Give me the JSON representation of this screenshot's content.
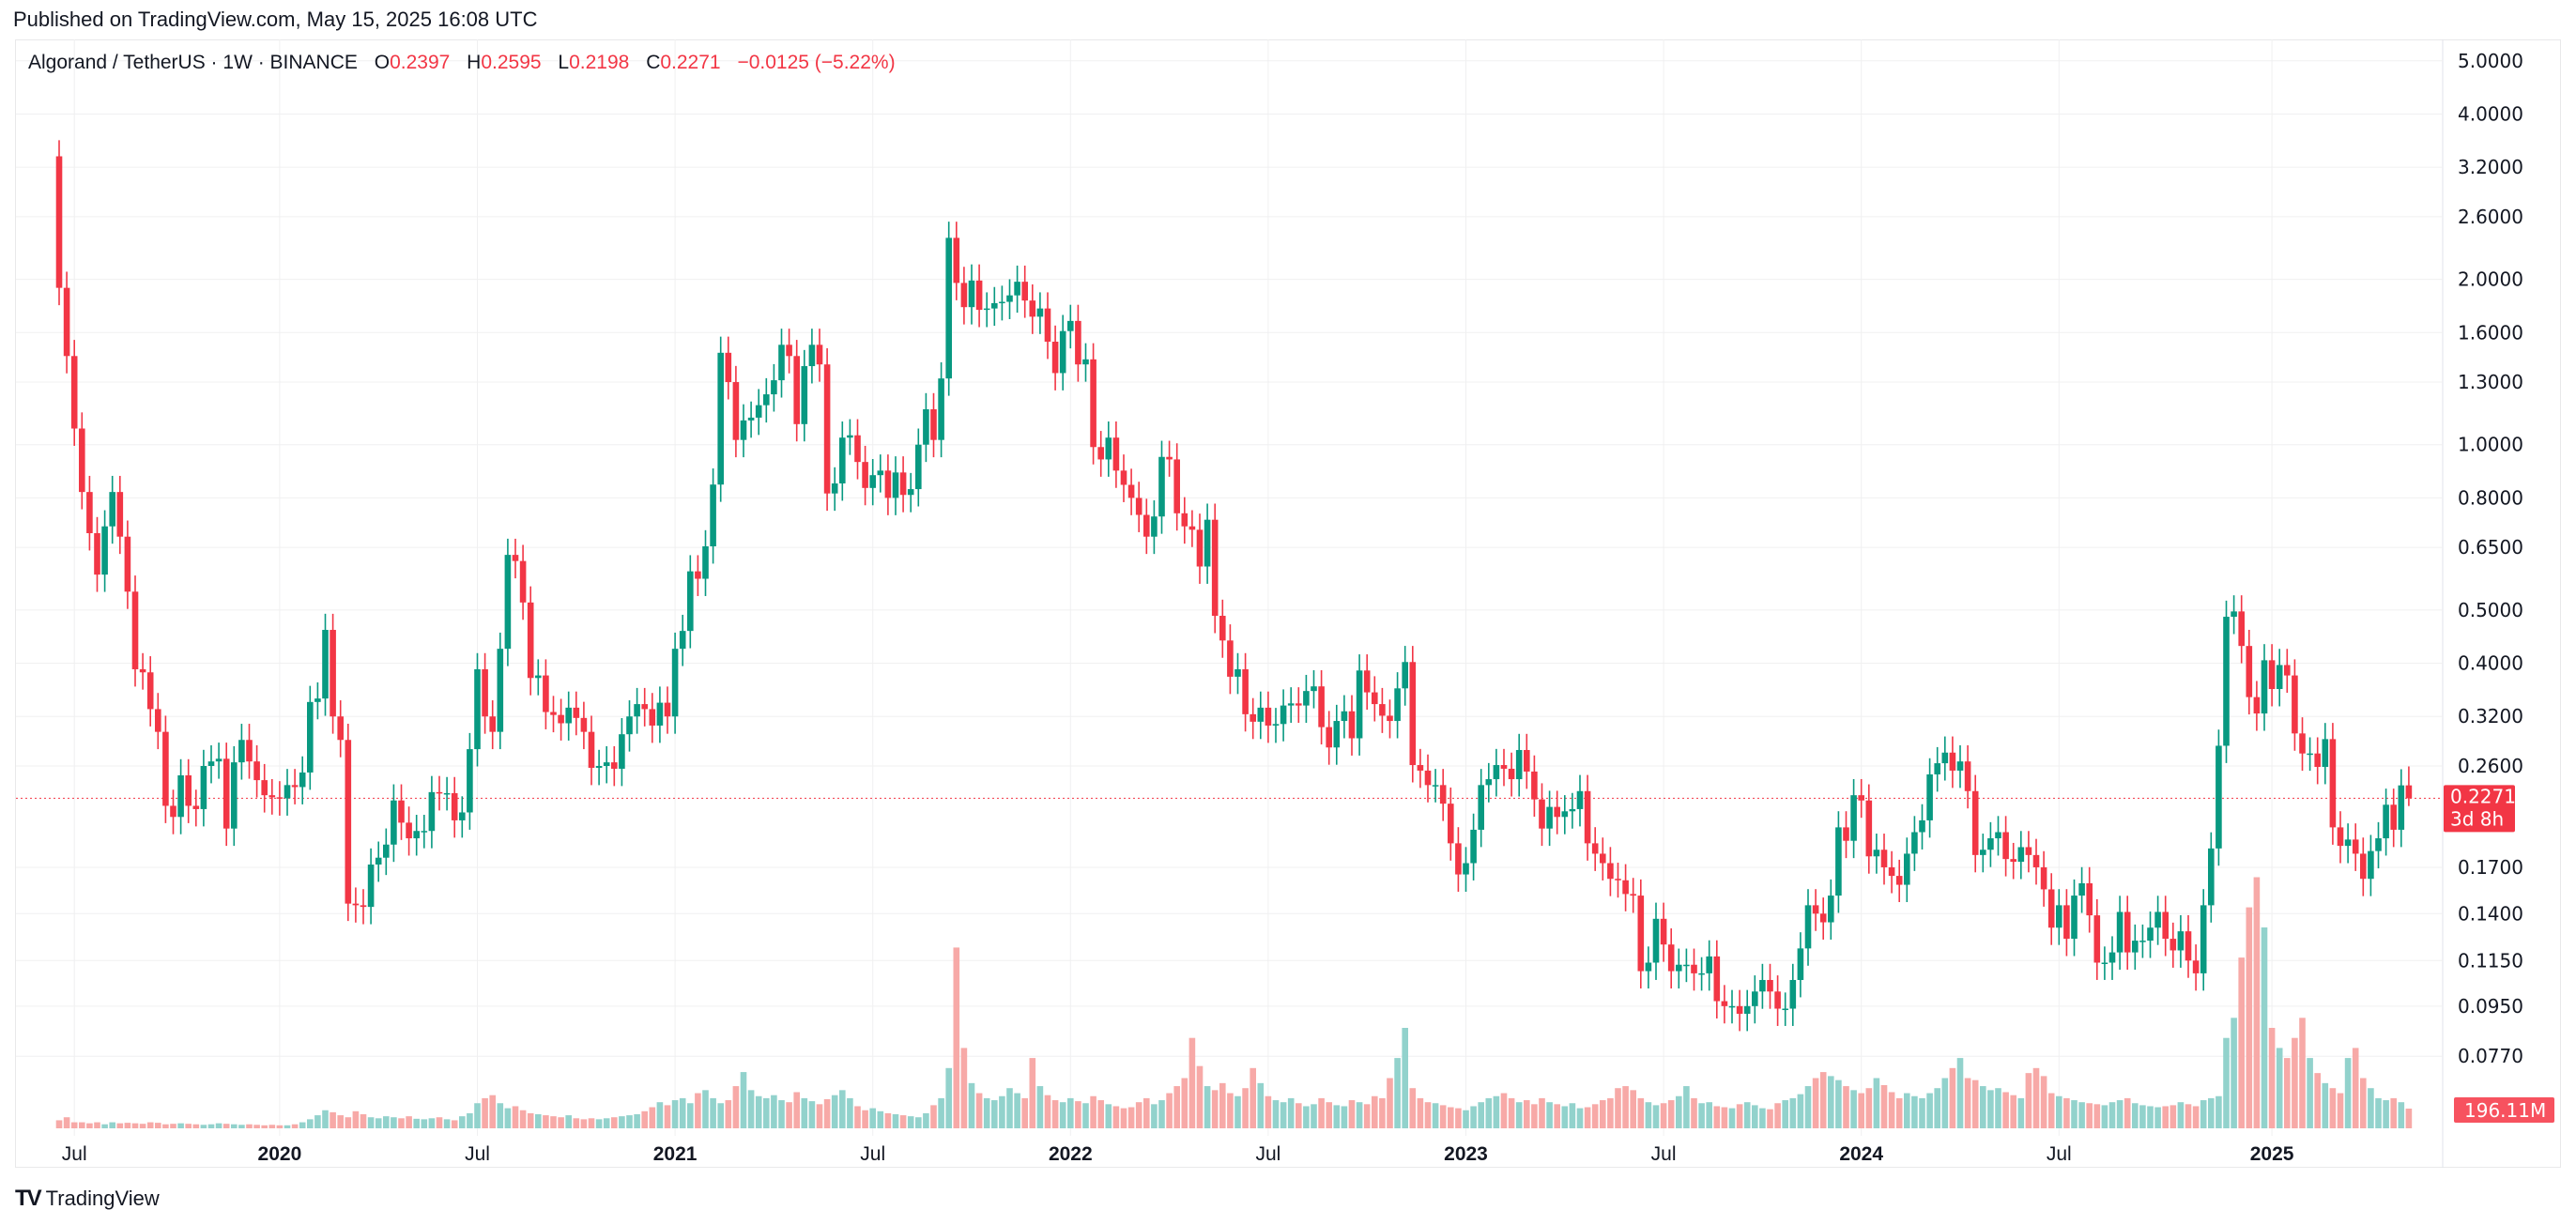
{
  "published": "Published on TradingView.com, May 15, 2025 16:08 UTC",
  "legend": {
    "symbol": "Algorand / TetherUS · 1W · BINANCE",
    "o_label": "O",
    "o": "0.2397",
    "h_label": "H",
    "h": "0.2595",
    "l_label": "L",
    "l": "0.2198",
    "c_label": "C",
    "c": "0.2271",
    "change": "−0.0125 (−5.22%)"
  },
  "brand": {
    "logo": "TV",
    "name": "TradingView"
  },
  "colors": {
    "up": "#089981",
    "down": "#F23645",
    "vol_up": "#92d2cc",
    "vol_down": "#f7a9a7",
    "grid": "#f0f0f1"
  },
  "chart_data": {
    "type": "candlestick",
    "title": "Algorand / TetherUS · 1W · BINANCE",
    "scale": "log",
    "first_open": 3.35,
    "closes": [
      1.93,
      1.45,
      1.07,
      0.82,
      0.69,
      0.58,
      0.71,
      0.82,
      0.68,
      0.54,
      0.39,
      0.385,
      0.33,
      0.3,
      0.22,
      0.21,
      0.25,
      0.22,
      0.217,
      0.26,
      0.265,
      0.268,
      0.2,
      0.264,
      0.29,
      0.265,
      0.245,
      0.23,
      0.228,
      0.227,
      0.24,
      0.238,
      0.253,
      0.34,
      0.345,
      0.46,
      0.32,
      0.29,
      0.146,
      0.145,
      0.144,
      0.172,
      0.177,
      0.187,
      0.225,
      0.205,
      0.192,
      0.198,
      0.198,
      0.233,
      0.232,
      0.232,
      0.207,
      0.214,
      0.279,
      0.39,
      0.32,
      0.3,
      0.425,
      0.63,
      0.614,
      0.516,
      0.376,
      0.38,
      0.326,
      0.322,
      0.311,
      0.332,
      0.318,
      0.3,
      0.258,
      0.26,
      0.264,
      0.257,
      0.297,
      0.32,
      0.337,
      0.33,
      0.308,
      0.339,
      0.32,
      0.425,
      0.458,
      0.588,
      0.57,
      0.653,
      0.846,
      1.47,
      1.3,
      1.02,
      1.107,
      1.12,
      1.18,
      1.235,
      1.31,
      1.52,
      1.45,
      1.09,
      1.39,
      1.52,
      1.4,
      0.815,
      0.85,
      1.03,
      1.04,
      0.93,
      0.834,
      0.88,
      0.897,
      0.8,
      0.89,
      0.81,
      0.83,
      1.0,
      1.16,
      1.02,
      1.32,
      2.38,
      1.97,
      1.78,
      1.99,
      1.76,
      1.77,
      1.81,
      1.82,
      1.87,
      1.98,
      1.83,
      1.71,
      1.77,
      1.54,
      1.35,
      1.61,
      1.68,
      1.4,
      1.43,
      0.99,
      0.94,
      1.03,
      0.897,
      0.845,
      0.8,
      0.745,
      0.68,
      0.74,
      0.95,
      0.94,
      0.75,
      0.71,
      0.7,
      0.6,
      0.73,
      0.488,
      0.44,
      0.378,
      0.39,
      0.323,
      0.313,
      0.332,
      0.308,
      0.31,
      0.335,
      0.338,
      0.335,
      0.356,
      0.363,
      0.306,
      0.281,
      0.314,
      0.327,
      0.292,
      0.388,
      0.354,
      0.337,
      0.321,
      0.314,
      0.36,
      0.402,
      0.261,
      0.255,
      0.24,
      0.24,
      0.222,
      0.188,
      0.165,
      0.173,
      0.199,
      0.24,
      0.246,
      0.261,
      0.257,
      0.246,
      0.278,
      0.254,
      0.226,
      0.2,
      0.219,
      0.21,
      0.215,
      0.217,
      0.234,
      0.188,
      0.18,
      0.173,
      0.162,
      0.161,
      0.152,
      0.151,
      0.11,
      0.114,
      0.137,
      0.123,
      0.11,
      0.113,
      0.113,
      0.109,
      0.109,
      0.117,
      0.097,
      0.095,
      0.095,
      0.092,
      0.095,
      0.101,
      0.106,
      0.101,
      0.094,
      0.094,
      0.106,
      0.121,
      0.145,
      0.14,
      0.135,
      0.151,
      0.201,
      0.19,
      0.23,
      0.225,
      0.178,
      0.183,
      0.17,
      0.164,
      0.158,
      0.18,
      0.197,
      0.207,
      0.251,
      0.263,
      0.275,
      0.255,
      0.265,
      0.234,
      0.179,
      0.183,
      0.192,
      0.197,
      0.176,
      0.174,
      0.185,
      0.179,
      0.17,
      0.155,
      0.132,
      0.145,
      0.126,
      0.151,
      0.159,
      0.139,
      0.114,
      0.114,
      0.119,
      0.141,
      0.119,
      0.125,
      0.125,
      0.132,
      0.141,
      0.126,
      0.12,
      0.13,
      0.115,
      0.109,
      0.145,
      0.184,
      0.283,
      0.486,
      0.497,
      0.43,
      0.347,
      0.324,
      0.405,
      0.359,
      0.397,
      0.38,
      0.298,
      0.274,
      0.274,
      0.259,
      0.291,
      0.201,
      0.186,
      0.191,
      0.18,
      0.162,
      0.182,
      0.192,
      0.221,
      0.199,
      0.2397,
      0.2271
    ],
    "last_candle": {
      "open": 0.2397,
      "high": 0.2595,
      "low": 0.2198,
      "close": 0.2271
    },
    "volume_millions": [
      80,
      110,
      60,
      60,
      50,
      60,
      40,
      60,
      50,
      55,
      50,
      45,
      60,
      55,
      40,
      45,
      50,
      45,
      40,
      35,
      40,
      50,
      45,
      40,
      35,
      40,
      35,
      30,
      35,
      30,
      30,
      40,
      60,
      90,
      130,
      180,
      160,
      130,
      110,
      170,
      140,
      110,
      100,
      120,
      110,
      100,
      120,
      95,
      90,
      100,
      110,
      90,
      80,
      120,
      150,
      250,
      300,
      330,
      250,
      200,
      220,
      180,
      150,
      140,
      130,
      120,
      110,
      130,
      100,
      90,
      100,
      90,
      100,
      110,
      120,
      130,
      140,
      170,
      210,
      260,
      230,
      280,
      300,
      250,
      350,
      380,
      300,
      250,
      280,
      420,
      560,
      380,
      320,
      300,
      330,
      280,
      260,
      360,
      300,
      270,
      240,
      290,
      330,
      380,
      300,
      220,
      180,
      200,
      170,
      150,
      140,
      130,
      120,
      110,
      150,
      230,
      300,
      600,
      1800,
      800,
      450,
      350,
      300,
      280,
      320,
      400,
      350,
      300,
      700,
      420,
      330,
      280,
      260,
      300,
      270,
      250,
      320,
      280,
      240,
      220,
      200,
      210,
      260,
      300,
      240,
      280,
      350,
      420,
      500,
      900,
      620,
      420,
      380,
      450,
      350,
      320,
      400,
      600,
      450,
      320,
      280,
      260,
      300,
      250,
      220,
      240,
      300,
      260,
      230,
      220,
      280,
      260,
      240,
      320,
      300,
      500,
      700,
      1000,
      400,
      300,
      260,
      250,
      230,
      210,
      200,
      180,
      220,
      260,
      300,
      320,
      350,
      300,
      260,
      280,
      240,
      300,
      260,
      240,
      220,
      250,
      200,
      210,
      240,
      280,
      300,
      400,
      420,
      380,
      300,
      260,
      230,
      250,
      280,
      320,
      420,
      300,
      250,
      260,
      220,
      210,
      200,
      240,
      260,
      230,
      200,
      190,
      250,
      280,
      300,
      340,
      420,
      500,
      560,
      520,
      480,
      420,
      380,
      350,
      400,
      500,
      430,
      360,
      300,
      350,
      320,
      300,
      350,
      400,
      500,
      600,
      700,
      500,
      480,
      420,
      380,
      400,
      360,
      330,
      300,
      550,
      600,
      520,
      350,
      320,
      300,
      280,
      260,
      250,
      240,
      230,
      260,
      280,
      300,
      250,
      230,
      220,
      210,
      220,
      230,
      260,
      240,
      220,
      280,
      300,
      320,
      900,
      1100,
      1700,
      2200,
      2500,
      2000,
      1000,
      800,
      700,
      900,
      1100,
      700,
      550,
      450,
      400,
      350,
      700,
      800,
      500,
      400,
      300,
      280,
      300,
      260,
      196.11
    ],
    "y_ticks": [
      "5.0000",
      "4.0000",
      "3.2000",
      "2.6000",
      "2.0000",
      "1.6000",
      "1.3000",
      "1.0000",
      "0.8000",
      "0.6500",
      "0.5000",
      "0.4000",
      "0.3200",
      "0.2600",
      "0.1700",
      "0.1400",
      "0.1150",
      "0.0950",
      "0.0770"
    ],
    "x_ticks": [
      {
        "label": "Jul",
        "index": 2,
        "year": false
      },
      {
        "label": "2020",
        "index": 29,
        "year": true
      },
      {
        "label": "Jul",
        "index": 55,
        "year": false
      },
      {
        "label": "2021",
        "index": 81,
        "year": true
      },
      {
        "label": "Jul",
        "index": 107,
        "year": false
      },
      {
        "label": "2022",
        "index": 133,
        "year": true
      },
      {
        "label": "Jul",
        "index": 159,
        "year": false
      },
      {
        "label": "2023",
        "index": 185,
        "year": true
      },
      {
        "label": "Jul",
        "index": 211,
        "year": false
      },
      {
        "label": "2024",
        "index": 237,
        "year": true
      },
      {
        "label": "Jul",
        "index": 263,
        "year": false
      },
      {
        "label": "2025",
        "index": 291,
        "year": true
      }
    ],
    "last_price_label": "0.2271",
    "countdown": "3d 8h",
    "volume_label": "196.11M"
  }
}
